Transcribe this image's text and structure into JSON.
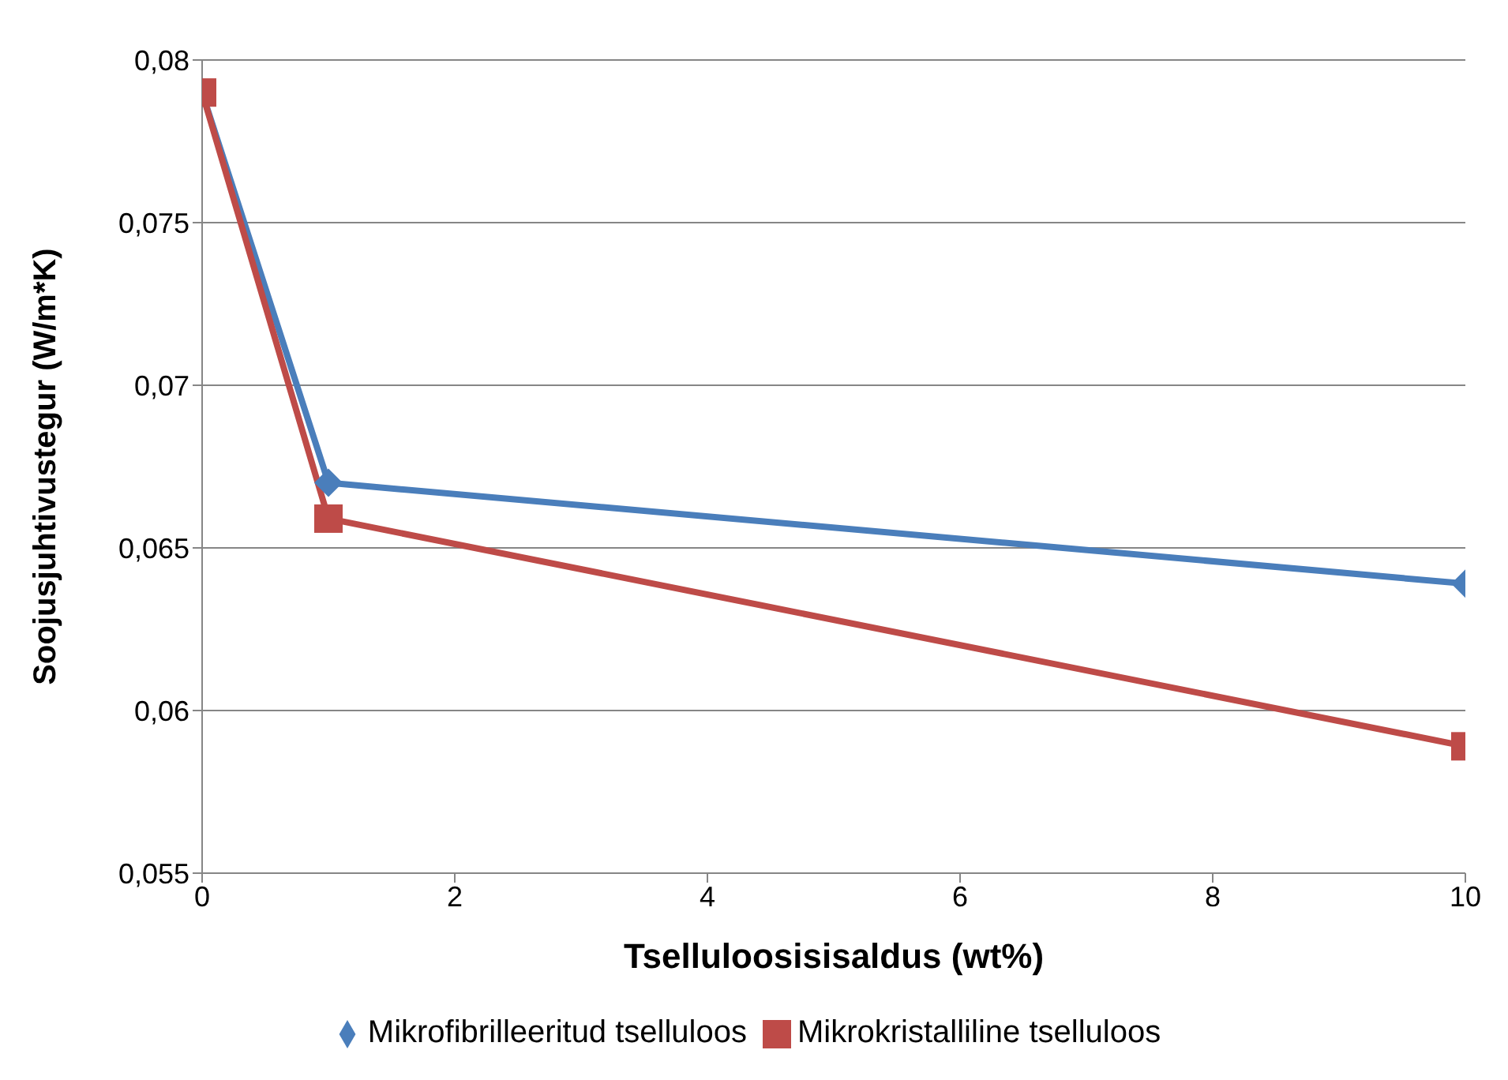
{
  "chart_data": {
    "type": "line",
    "xlabel": "Tselluloosisisaldus (wt%)",
    "ylabel": "Soojusjuhtivustegur (W/m*K)",
    "x": [
      0,
      1,
      10
    ],
    "series": [
      {
        "name": "Mikrofibrilleeritud tselluloos",
        "color": "#4a7ebb",
        "values": [
          0.079,
          0.067,
          0.0639
        ],
        "marker": "diamond"
      },
      {
        "name": "Mikrokristalliline tselluloos",
        "color": "#be4b48",
        "values": [
          0.079,
          0.0659,
          0.0589
        ],
        "marker": "square"
      }
    ],
    "xlim": [
      0,
      10
    ],
    "xticks": [
      0,
      2,
      4,
      6,
      8,
      10
    ],
    "ylim": [
      0.055,
      0.08
    ],
    "yticks": [
      {
        "value": 0.055,
        "label": "0,055"
      },
      {
        "value": 0.06,
        "label": "0,06"
      },
      {
        "value": 0.065,
        "label": "0,065"
      },
      {
        "value": 0.07,
        "label": "0,07"
      },
      {
        "value": 0.075,
        "label": "0,075"
      },
      {
        "value": 0.08,
        "label": "0,08"
      }
    ],
    "grid": "y",
    "legend": "bottom",
    "line_style": "solid"
  }
}
